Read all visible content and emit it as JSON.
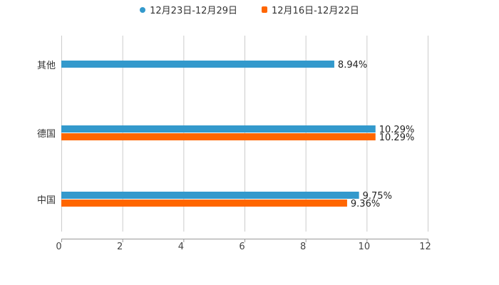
{
  "chart_data": {
    "type": "bar",
    "orientation": "horizontal",
    "title": "",
    "xlabel": "",
    "ylabel": "",
    "xlim": [
      0,
      12
    ],
    "xticks": [
      "0",
      "2",
      "4",
      "6",
      "8",
      "10",
      "12"
    ],
    "grid": true,
    "legend_position": "top-center",
    "categories": [
      "其他",
      "德国",
      "中国"
    ],
    "series": [
      {
        "name": "12月23日-12月29日",
        "color": "#3399cc",
        "values": [
          8.94,
          10.29,
          9.75
        ],
        "labels": [
          "8.94%",
          "10.29%",
          "9.75%"
        ]
      },
      {
        "name": "12月16日-12月22日",
        "color": "#ff6600",
        "values": [
          null,
          10.29,
          9.36
        ],
        "labels": [
          null,
          "10.29%",
          "9.36%"
        ]
      }
    ]
  }
}
